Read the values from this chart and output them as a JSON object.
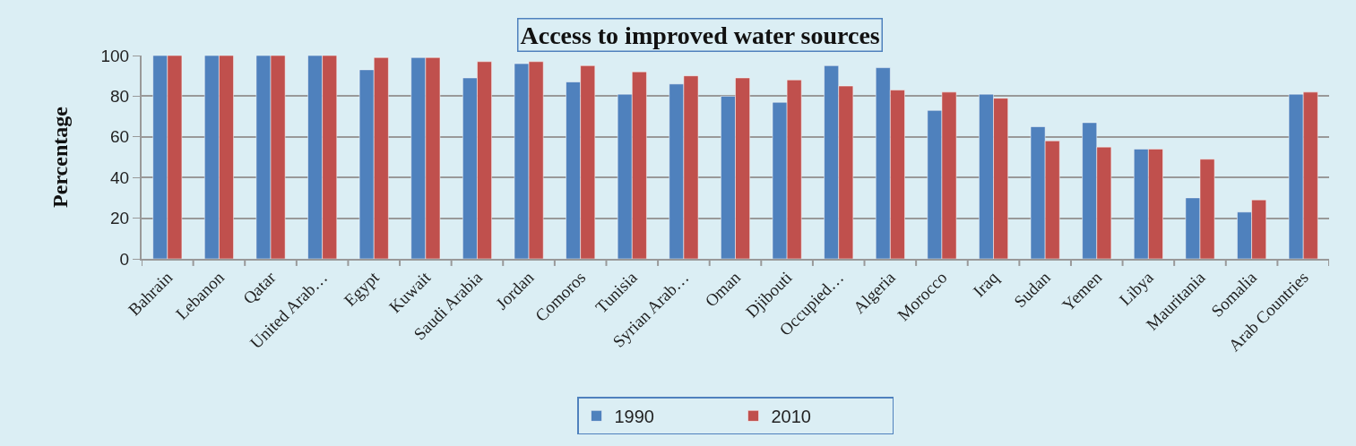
{
  "chart_data": {
    "type": "bar",
    "title": "Access to improved water sources",
    "ylabel": "Percentage",
    "categories": [
      "Bahrain",
      "Lebanon",
      "Qatar",
      "United Arab…",
      "Egypt",
      "Kuwait",
      "Saudi Arabia",
      "Jordan",
      "Comoros",
      "Tunisia",
      "Syrian Arab…",
      "Oman",
      "Djibouti",
      "Occupied…",
      "Algeria",
      "Morocco",
      "Iraq",
      "Sudan",
      "Yemen",
      "Libya",
      "Mauritania",
      "Somalia",
      "Arab Countries"
    ],
    "series": [
      {
        "name": "1990",
        "color": "#4f81bd",
        "values": [
          100,
          100,
          100,
          100,
          93,
          99,
          89,
          96,
          87,
          81,
          86,
          80,
          77,
          95,
          94,
          73,
          81,
          65,
          67,
          54,
          30,
          23,
          81
        ]
      },
      {
        "name": "2010",
        "color": "#c0504d",
        "values": [
          100,
          100,
          100,
          100,
          99,
          99,
          97,
          97,
          95,
          92,
          90,
          89,
          88,
          85,
          83,
          82,
          79,
          58,
          55,
          54,
          49,
          29,
          82
        ]
      }
    ],
    "ylim": [
      0,
      100
    ],
    "yticks": [
      0,
      20,
      40,
      60,
      80,
      100
    ],
    "grid": "y",
    "legend": "bottom"
  }
}
